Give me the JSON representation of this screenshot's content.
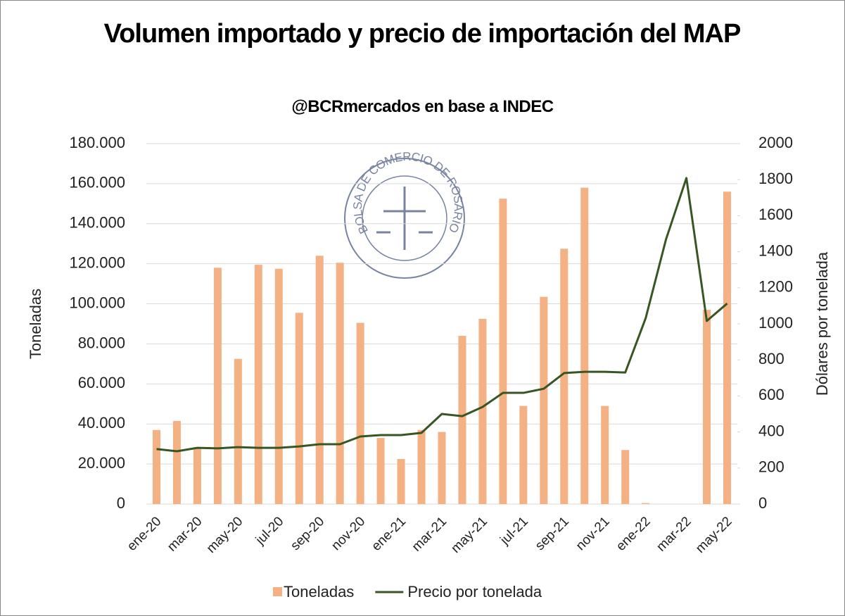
{
  "chart_data": {
    "type": "bar_line",
    "title": "Volumen importado y precio de importación del MAP",
    "subtitle": "@BCRmercados en base a INDEC",
    "y_label": "Toneladas",
    "y2_label": "Dólares por tonelada",
    "categories": [
      "ene-20",
      null,
      "mar-20",
      null,
      "may-20",
      null,
      "jul-20",
      null,
      "sep-20",
      null,
      "nov-20",
      null,
      "ene-21",
      null,
      "mar-21",
      null,
      "may-21",
      null,
      "jul-21",
      null,
      "sep-21",
      null,
      "nov-21",
      null,
      "ene-22",
      null,
      "mar-22",
      null,
      "may-22"
    ],
    "series": [
      {
        "name": "Toneladas",
        "type": "bar",
        "color": "#f4b183",
        "values": [
          37000,
          41500,
          28000,
          118000,
          72500,
          119500,
          117500,
          95500,
          124000,
          120500,
          90500,
          33000,
          22500,
          37000,
          36000,
          84000,
          92500,
          152500,
          49000,
          103500,
          127500,
          158000,
          49000,
          27000,
          500,
          0,
          0,
          97000,
          156000
        ]
      },
      {
        "name": "Precio por tonelada",
        "type": "line",
        "axis": "y2",
        "color": "#375623",
        "values": [
          305,
          293,
          312,
          309,
          316,
          312,
          312,
          320,
          332,
          332,
          375,
          383,
          383,
          395,
          500,
          488,
          539,
          617,
          617,
          640,
          727,
          734,
          734,
          730,
          1031,
          1469,
          1809,
          1016,
          1113
        ]
      }
    ],
    "ylim": [
      0,
      180000
    ],
    "yticks": [
      0,
      {
        "value": 20000,
        "label": "20.000"
      },
      {
        "value": 40000,
        "label": "40.000"
      },
      {
        "value": 60000,
        "label": "60.000"
      },
      {
        "value": 80000,
        "label": "80.000"
      },
      {
        "value": 100000,
        "label": "100.000"
      },
      {
        "value": 120000,
        "label": "120.000"
      },
      {
        "value": 140000,
        "label": "140.000"
      },
      {
        "value": 160000,
        "label": "160.000"
      },
      {
        "value": 180000,
        "label": "180.000"
      }
    ],
    "y2lim": [
      0,
      2000
    ],
    "y2ticks": [
      0,
      200,
      400,
      600,
      800,
      1000,
      1200,
      1400,
      1600,
      1800,
      2000
    ],
    "grid": true,
    "legend": "bottom"
  },
  "logo": {
    "text": "BOLSA DE COMERCIO DE ROSARIO"
  }
}
